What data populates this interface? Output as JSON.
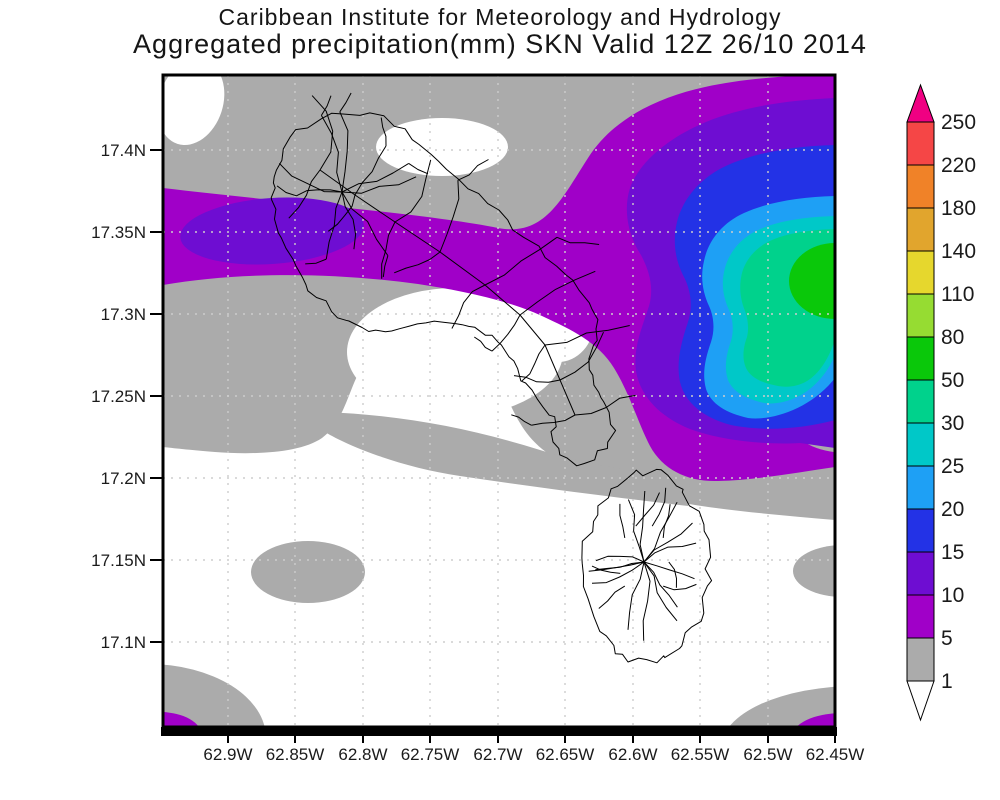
{
  "title": {
    "line1": "Caribbean Institute for Meteorology and Hydrology",
    "line2": "Aggregated precipitation(mm) SKN Valid 12Z 26/10 2014"
  },
  "axes": {
    "y": {
      "labels": [
        "17.4N",
        "17.35N",
        "17.3N",
        "17.25N",
        "17.2N",
        "17.15N",
        "17.1N"
      ],
      "px": [
        150,
        232,
        314,
        396,
        478,
        560,
        642
      ]
    },
    "x": {
      "labels": [
        "62.9W",
        "62.85W",
        "62.8W",
        "62.75W",
        "62.7W",
        "62.65W",
        "62.6W",
        "62.55W",
        "62.5W",
        "62.45W"
      ],
      "px": [
        228,
        295,
        363,
        430,
        498,
        565,
        633,
        700,
        768,
        835
      ]
    }
  },
  "colorbar": {
    "levels": [
      1,
      5,
      10,
      15,
      20,
      25,
      30,
      50,
      80,
      110,
      140,
      180,
      220,
      250
    ],
    "segment_colors": [
      "#ABABAB",
      "#A000C8",
      "#6E0DD2",
      "#2332E6",
      "#1EA0F5",
      "#00C8C8",
      "#00D28C",
      "#0AC80A",
      "#96DC32",
      "#E6D72D",
      "#E1A52D",
      "#F08228",
      "#F54646"
    ],
    "below_color": "#FFFFFF",
    "above_color": "#F00082"
  },
  "chart_data": {
    "type": "heatmap",
    "subtype": "filled-contour precipitation map",
    "title": "Caribbean Institute for Meteorology and Hydrology",
    "subtitle": "Aggregated precipitation(mm) SKN Valid 12Z 26/10 2014",
    "variable": "aggregated precipitation",
    "units": "mm",
    "region_code": "SKN",
    "valid_time": "12Z 26/10 2014",
    "x_axis": {
      "label": "longitude",
      "ticks": [
        "62.9W",
        "62.85W",
        "62.8W",
        "62.75W",
        "62.7W",
        "62.65W",
        "62.6W",
        "62.55W",
        "62.5W",
        "62.45W"
      ],
      "range": [
        "62.95W",
        "62.45W"
      ],
      "grid": "dotted"
    },
    "y_axis": {
      "label": "latitude",
      "ticks": [
        "17.4N",
        "17.35N",
        "17.3N",
        "17.25N",
        "17.2N",
        "17.15N",
        "17.1N"
      ],
      "range": [
        "17.04N",
        "17.44N"
      ],
      "grid": "dotted"
    },
    "contour_levels_mm": [
      1,
      5,
      10,
      15,
      20,
      25,
      30,
      50,
      80,
      110,
      140,
      180,
      220,
      250
    ],
    "level_colors": {
      "below_1": "#FFFFFF",
      "1_5": "#ABABAB",
      "5_10": "#A000C8",
      "10_15": "#6E0DD2",
      "15_20": "#2332E6",
      "20_25": "#1EA0F5",
      "25_30": "#00C8C8",
      "30_50": "#00D28C",
      "50_80": "#0AC80A",
      "80_110": "#96DC32",
      "110_140": "#E6D72D",
      "140_180": "#E1A52D",
      "180_220": "#F08228",
      "220_250": "#F54646",
      "above_250": "#F00082"
    },
    "legend_position": "right vertical color bar with end arrows",
    "islands_outlined": [
      "St. Kitts",
      "Nevis"
    ],
    "features": [
      {
        "name": "eastern maximum",
        "location": "near 62.47W, 17.3N (east edge of map)",
        "peak_range_mm": "50-80",
        "structure": "concentric rings 5,10,15,20,25,30,50 mm"
      },
      {
        "name": "St. Kitts band",
        "location": "along ~17.33-17.37N across northern St. Kitts",
        "peak_range_mm": "10-15",
        "structure": "west-east band of 5-15 mm"
      },
      {
        "name": "background",
        "location": "remainder of domain",
        "peak_range_mm": "0-5",
        "structure": "white (<1 mm) with gray 1-5 mm bands and small 5-10 mm patches at the south corners"
      }
    ]
  }
}
